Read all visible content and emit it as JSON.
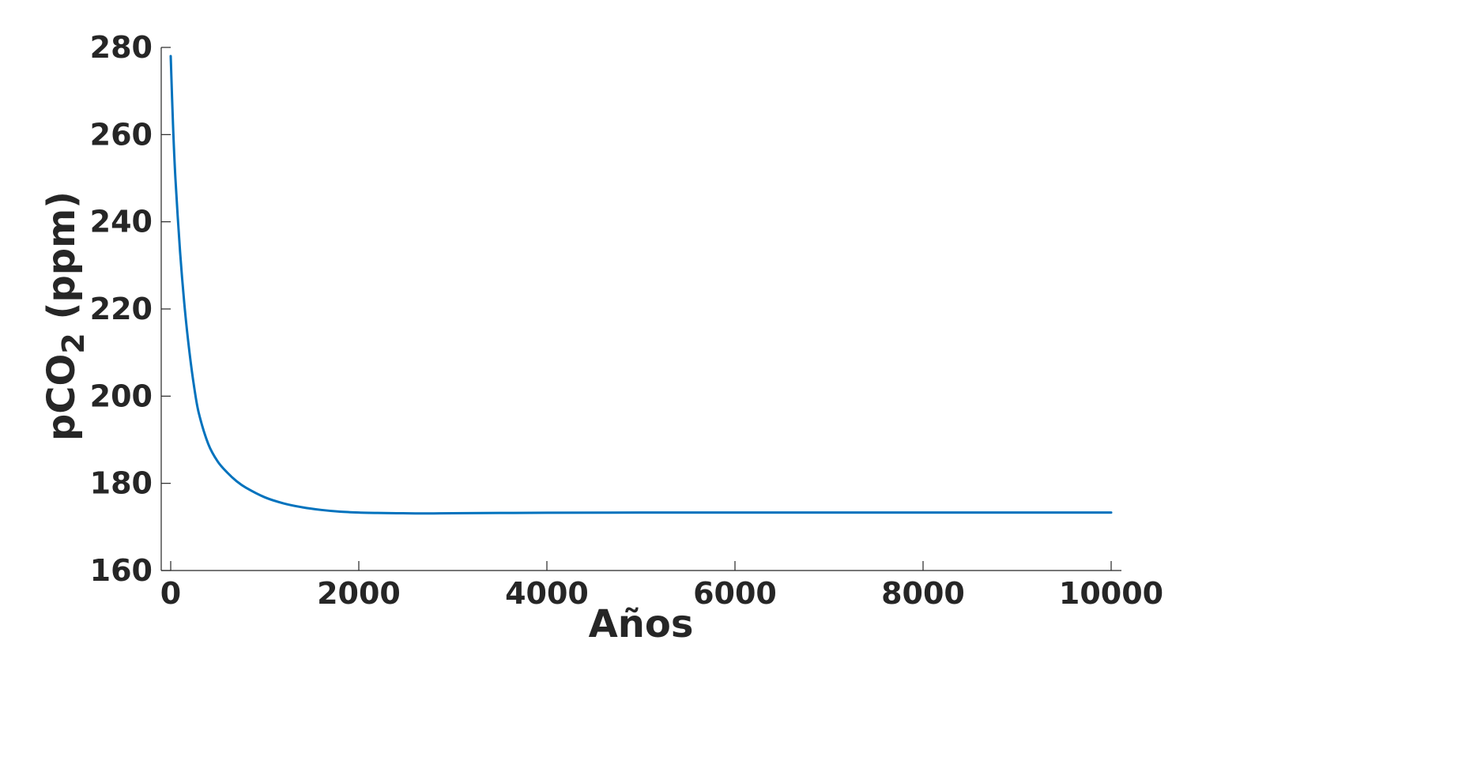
{
  "chart_data": {
    "type": "line",
    "xlabel": "Años",
    "ylabel_main": "pCO",
    "ylabel_subscript": "2",
    "ylabel_unit": " (ppm)",
    "xlim": [
      -50,
      10500
    ],
    "ylim": [
      160,
      280
    ],
    "xticks": [
      0,
      2000,
      4000,
      6000,
      8000,
      10000
    ],
    "yticks": [
      160,
      180,
      200,
      220,
      240,
      260,
      280
    ],
    "grid": false,
    "line_color": "#0072BD",
    "series": [
      {
        "x": [
          0,
          25,
          50,
          100,
          150,
          200,
          250,
          300,
          400,
          500,
          600,
          700,
          800,
          1000,
          1200,
          1400,
          1600,
          1800,
          2000,
          2200,
          2400,
          2600,
          2800,
          3000,
          3500,
          4000,
          5000,
          6000,
          7000,
          8000,
          9000,
          10000
        ],
        "y": [
          278,
          262,
          250,
          233,
          220,
          210,
          202,
          196,
          189,
          185,
          182.5,
          180.5,
          179,
          176.8,
          175.4,
          174.5,
          173.9,
          173.5,
          173.3,
          173.2,
          173.15,
          173.1,
          173.1,
          173.15,
          173.2,
          173.25,
          173.3,
          173.3,
          173.3,
          173.3,
          173.3,
          173.3
        ]
      }
    ]
  }
}
